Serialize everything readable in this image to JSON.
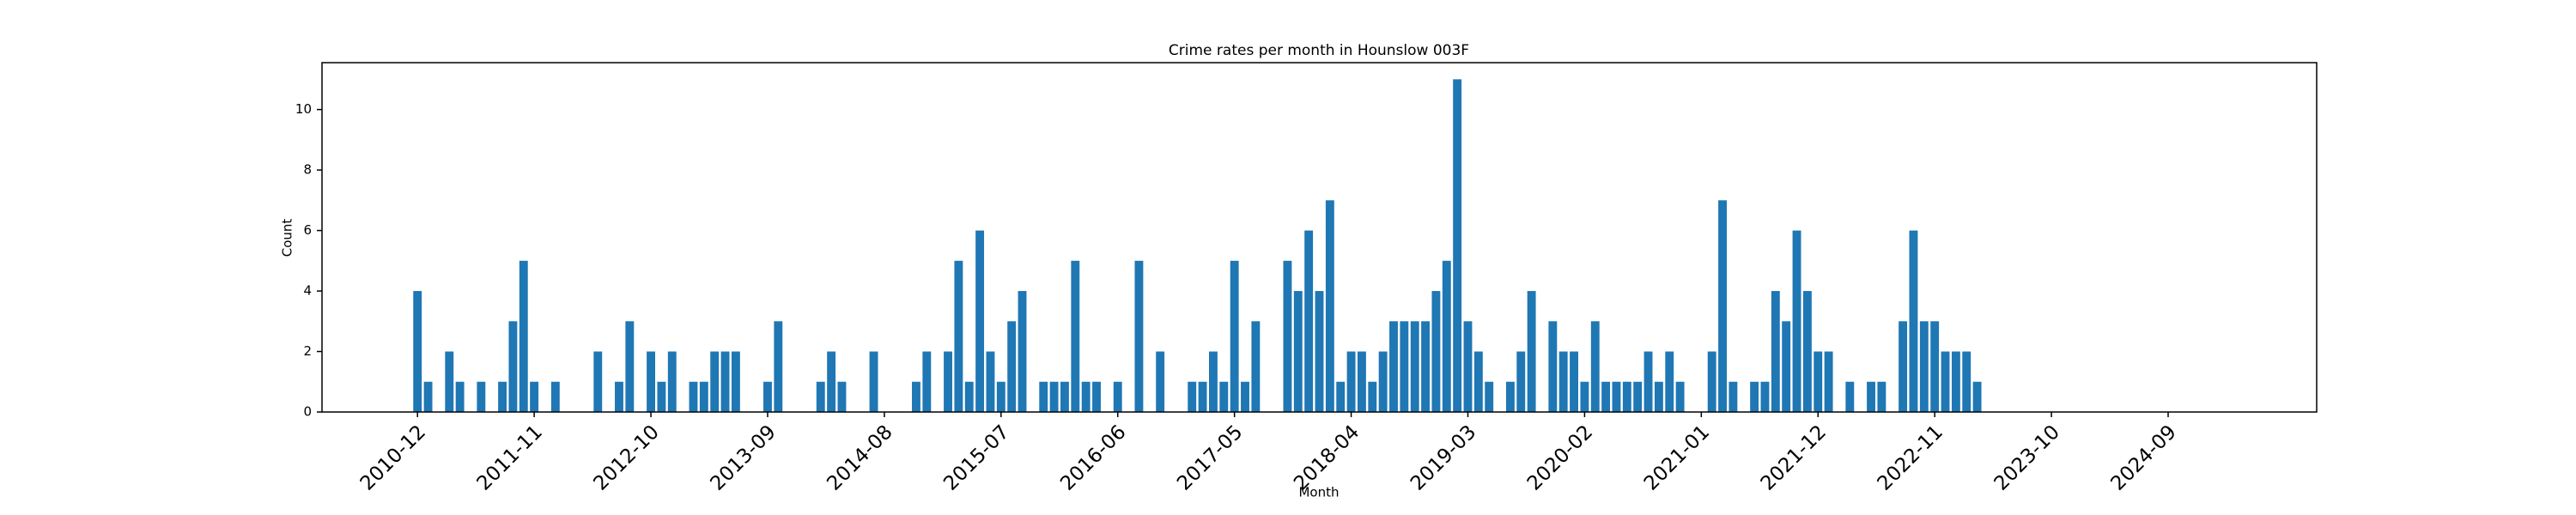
{
  "chart_data": {
    "type": "bar",
    "title": "Crime rates per month in Hounslow 003F",
    "xlabel": "Month",
    "ylabel": "Count",
    "color": "#1f77b4",
    "x": [
      "2010-12",
      "2011-01",
      "2011-03",
      "2011-04",
      "2011-06",
      "2011-08",
      "2011-09",
      "2011-10",
      "2011-11",
      "2012-01",
      "2012-05",
      "2012-07",
      "2012-08",
      "2012-10",
      "2012-11",
      "2012-12",
      "2013-02",
      "2013-03",
      "2013-04",
      "2013-05",
      "2013-06",
      "2013-09",
      "2013-10",
      "2014-02",
      "2014-03",
      "2014-04",
      "2014-07",
      "2014-11",
      "2014-12",
      "2015-02",
      "2015-03",
      "2015-04",
      "2015-05",
      "2015-06",
      "2015-07",
      "2015-08",
      "2015-09",
      "2015-11",
      "2015-12",
      "2016-01",
      "2016-02",
      "2016-03",
      "2016-04",
      "2016-06",
      "2016-08",
      "2016-10",
      "2017-01",
      "2017-02",
      "2017-03",
      "2017-04",
      "2017-05",
      "2017-06",
      "2017-07",
      "2017-10",
      "2017-11",
      "2017-12",
      "2018-01",
      "2018-02",
      "2018-03",
      "2018-04",
      "2018-05",
      "2018-06",
      "2018-07",
      "2018-08",
      "2018-09",
      "2018-10",
      "2018-11",
      "2018-12",
      "2019-01",
      "2019-02",
      "2019-03",
      "2019-04",
      "2019-05",
      "2019-07",
      "2019-08",
      "2019-09",
      "2019-11",
      "2019-12",
      "2020-01",
      "2020-02",
      "2020-03",
      "2020-04",
      "2020-05",
      "2020-06",
      "2020-07",
      "2020-08",
      "2020-09",
      "2020-10",
      "2020-11",
      "2021-02",
      "2021-03",
      "2021-04",
      "2021-06",
      "2021-07",
      "2021-08",
      "2021-09",
      "2021-10",
      "2021-11",
      "2021-12",
      "2022-01",
      "2022-03",
      "2022-05",
      "2022-06",
      "2022-08",
      "2022-09",
      "2022-10",
      "2022-11",
      "2022-12",
      "2023-01",
      "2023-02",
      "2023-03"
    ],
    "values": [
      4,
      1,
      2,
      1,
      1,
      1,
      3,
      5,
      1,
      1,
      2,
      1,
      3,
      2,
      1,
      2,
      1,
      1,
      2,
      2,
      2,
      1,
      3,
      1,
      2,
      1,
      2,
      1,
      2,
      2,
      5,
      1,
      6,
      2,
      1,
      3,
      4,
      1,
      1,
      1,
      5,
      1,
      1,
      1,
      5,
      2,
      1,
      1,
      2,
      1,
      5,
      1,
      3,
      5,
      4,
      6,
      4,
      7,
      1,
      2,
      2,
      1,
      2,
      3,
      3,
      3,
      3,
      4,
      5,
      11,
      3,
      2,
      1,
      1,
      2,
      4,
      3,
      2,
      2,
      1,
      3,
      1,
      1,
      1,
      1,
      2,
      1,
      2,
      1,
      2,
      7,
      1,
      1,
      1,
      4,
      3,
      6,
      4,
      2,
      2,
      1,
      1,
      1,
      3,
      6,
      3,
      3,
      2,
      2,
      2,
      1
    ],
    "xlim": [
      "2010-03",
      "2025-11"
    ],
    "xticks": [
      "2010-12",
      "2011-11",
      "2012-10",
      "2013-09",
      "2014-08",
      "2015-07",
      "2016-06",
      "2017-05",
      "2018-04",
      "2019-03",
      "2020-02",
      "2021-01",
      "2021-12",
      "2022-11",
      "2023-10",
      "2024-09"
    ],
    "ylim": [
      0,
      11.55
    ],
    "yticks": [
      0,
      2,
      4,
      6,
      8,
      10
    ]
  }
}
